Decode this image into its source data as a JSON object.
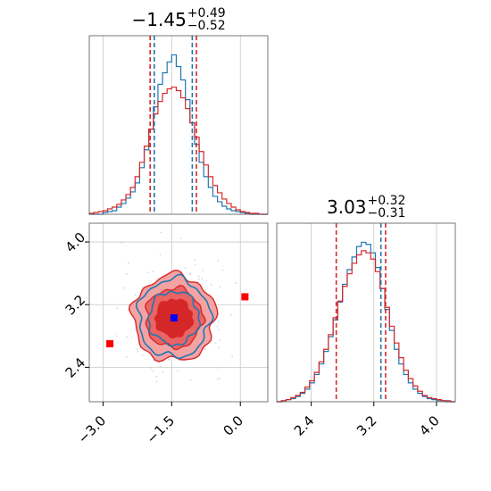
{
  "figure": {
    "title_x": {
      "value": "−1.45",
      "plus": "+0.49",
      "minus": "−0.52"
    },
    "title_y": {
      "value": "3.03",
      "plus": "+0.32",
      "minus": "−0.31"
    }
  },
  "colors": {
    "red": "#d62728",
    "blue": "#1f77b4",
    "marker_red": "#ff0000",
    "marker_blue": "#0000ff",
    "grid": "#c8c8c8",
    "fill_light": "#f4a3a3",
    "fill_mid": "#ea6464",
    "fill_dark": "#d62728"
  },
  "chart_data": [
    {
      "type": "histogram",
      "panel": "marginal-x",
      "xlim": [
        -3.3,
        0.6
      ],
      "tick_values": [
        -3.0,
        -1.5,
        0.0
      ],
      "grid": true,
      "series": [
        {
          "color": "#1f77b4",
          "bins": [
            -3.3,
            -3.2,
            -3.1,
            -3.0,
            -2.9,
            -2.8,
            -2.7,
            -2.6,
            -2.5,
            -2.4,
            -2.3,
            -2.2,
            -2.1,
            -2.0,
            -1.9,
            -1.8,
            -1.7,
            -1.6,
            -1.5,
            -1.4,
            -1.3,
            -1.2,
            -1.1,
            -1.0,
            -0.9,
            -0.8,
            -0.7,
            -0.6,
            -0.5,
            -0.4,
            -0.3,
            -0.2,
            -0.1,
            0.0,
            0.1,
            0.2,
            0.3,
            0.4,
            0.5,
            0.6
          ],
          "counts": [
            0,
            0,
            0,
            2,
            3,
            4,
            8,
            12,
            18,
            25,
            35,
            52,
            72,
            95,
            120,
            145,
            158,
            170,
            178,
            165,
            150,
            128,
            102,
            78,
            58,
            42,
            30,
            20,
            14,
            9,
            6,
            4,
            3,
            2,
            1,
            0,
            0,
            0,
            0
          ]
        },
        {
          "color": "#d62728",
          "bins": [
            -3.3,
            -3.2,
            -3.1,
            -3.0,
            -2.9,
            -2.8,
            -2.7,
            -2.6,
            -2.5,
            -2.4,
            -2.3,
            -2.2,
            -2.1,
            -2.0,
            -1.9,
            -1.8,
            -1.7,
            -1.6,
            -1.5,
            -1.4,
            -1.3,
            -1.2,
            -1.1,
            -1.0,
            -0.9,
            -0.8,
            -0.7,
            -0.6,
            -0.5,
            -0.4,
            -0.3,
            -0.2,
            -0.1,
            0.0,
            0.1,
            0.2,
            0.3,
            0.4,
            0.5,
            0.6
          ],
          "counts": [
            1,
            2,
            3,
            4,
            6,
            8,
            11,
            16,
            22,
            30,
            42,
            58,
            76,
            95,
            112,
            126,
            135,
            140,
            142,
            138,
            130,
            118,
            102,
            86,
            70,
            55,
            42,
            32,
            24,
            17,
            12,
            8,
            5,
            3,
            2,
            1,
            1,
            0,
            0
          ]
        }
      ],
      "quantile_lines": [
        {
          "color": "#d62728",
          "values": [
            -1.97,
            -0.96
          ]
        },
        {
          "color": "#1f77b4",
          "values": [
            -1.88,
            -1.05
          ]
        }
      ]
    },
    {
      "type": "contour",
      "panel": "joint",
      "xlim": [
        -3.3,
        0.6
      ],
      "ylim": [
        1.96,
        4.24
      ],
      "x_tick_values": [
        -3.0,
        -1.5,
        0.0
      ],
      "y_tick_values": [
        4.0,
        3.2,
        2.4
      ],
      "grid": true,
      "center": {
        "x": -1.45,
        "y": 3.03
      },
      "levels": [
        {
          "color": "#d62728",
          "filled": true,
          "sx": 0.9,
          "sy": 0.55
        },
        {
          "color": "#d62728",
          "filled": true,
          "sx": 0.62,
          "sy": 0.38
        },
        {
          "color": "#d62728",
          "filled": true,
          "sx": 0.4,
          "sy": 0.24
        },
        {
          "color": "#1f77b4",
          "filled": false,
          "sx": 0.78,
          "sy": 0.5
        },
        {
          "color": "#1f77b4",
          "filled": false,
          "sx": 0.55,
          "sy": 0.34
        }
      ],
      "markers": [
        {
          "x": -2.85,
          "y": 2.7,
          "color": "#ff0000"
        },
        {
          "x": 0.1,
          "y": 3.3,
          "color": "#ff0000"
        },
        {
          "x": -1.45,
          "y": 3.03,
          "color": "#0000ff"
        }
      ]
    },
    {
      "type": "histogram",
      "panel": "marginal-y",
      "xlim": [
        1.96,
        4.24
      ],
      "tick_values": [
        2.4,
        3.2,
        4.0
      ],
      "grid": true,
      "series": [
        {
          "color": "#1f77b4",
          "bins": [
            1.96,
            2.02,
            2.08,
            2.14,
            2.2,
            2.26,
            2.32,
            2.38,
            2.44,
            2.5,
            2.56,
            2.62,
            2.68,
            2.74,
            2.8,
            2.86,
            2.92,
            2.98,
            3.04,
            3.1,
            3.16,
            3.22,
            3.28,
            3.34,
            3.4,
            3.46,
            3.52,
            3.58,
            3.64,
            3.7,
            3.76,
            3.82,
            3.88,
            3.94,
            4.0,
            4.06,
            4.12,
            4.18,
            4.24
          ],
          "counts": [
            0,
            1,
            2,
            3,
            5,
            8,
            12,
            18,
            26,
            36,
            48,
            62,
            78,
            95,
            112,
            126,
            138,
            148,
            152,
            150,
            142,
            128,
            108,
            88,
            68,
            50,
            36,
            26,
            18,
            12,
            8,
            5,
            3,
            2,
            1,
            1,
            0,
            0
          ]
        },
        {
          "color": "#d62728",
          "bins": [
            1.96,
            2.02,
            2.08,
            2.14,
            2.2,
            2.26,
            2.32,
            2.38,
            2.44,
            2.5,
            2.56,
            2.62,
            2.68,
            2.74,
            2.8,
            2.86,
            2.92,
            2.98,
            3.04,
            3.1,
            3.16,
            3.22,
            3.28,
            3.34,
            3.4,
            3.46,
            3.52,
            3.58,
            3.64,
            3.7,
            3.76,
            3.82,
            3.88,
            3.94,
            4.0,
            4.06,
            4.12,
            4.18,
            4.24
          ],
          "counts": [
            0,
            1,
            2,
            4,
            6,
            9,
            14,
            20,
            28,
            38,
            50,
            64,
            80,
            96,
            110,
            122,
            132,
            140,
            144,
            142,
            136,
            124,
            108,
            90,
            72,
            56,
            42,
            30,
            22,
            15,
            10,
            6,
            4,
            3,
            2,
            1,
            1,
            0
          ]
        }
      ],
      "quantile_lines": [
        {
          "color": "#d62728",
          "values": [
            2.72,
            3.35
          ]
        },
        {
          "color": "#1f77b4",
          "values": [
            3.29
          ]
        }
      ]
    }
  ]
}
